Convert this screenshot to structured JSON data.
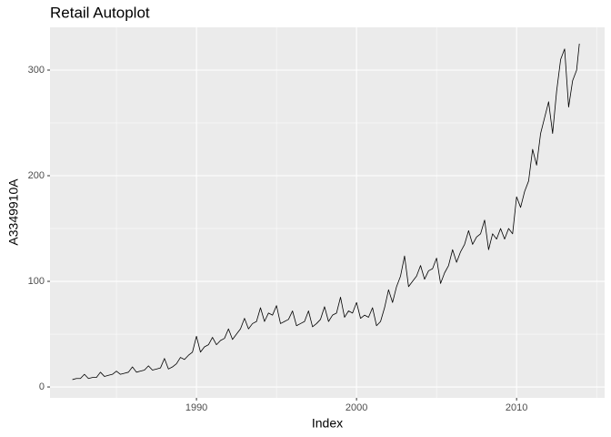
{
  "chart_data": {
    "type": "line",
    "title": "Retail Autoplot",
    "x_label": "Index",
    "y_label": "A3349910A",
    "x": [
      1982.25,
      1982.5,
      1982.75,
      1983.0,
      1983.25,
      1983.5,
      1983.75,
      1984.0,
      1984.25,
      1984.5,
      1984.75,
      1985.0,
      1985.25,
      1985.5,
      1985.75,
      1986.0,
      1986.25,
      1986.5,
      1986.75,
      1987.0,
      1987.25,
      1987.5,
      1987.75,
      1988.0,
      1988.25,
      1988.5,
      1988.75,
      1989.0,
      1989.25,
      1989.5,
      1989.75,
      1990.0,
      1990.25,
      1990.5,
      1990.75,
      1991.0,
      1991.25,
      1991.5,
      1991.75,
      1992.0,
      1992.25,
      1992.5,
      1992.75,
      1993.0,
      1993.25,
      1993.5,
      1993.75,
      1994.0,
      1994.25,
      1994.5,
      1994.75,
      1995.0,
      1995.25,
      1995.5,
      1995.75,
      1996.0,
      1996.25,
      1996.5,
      1996.75,
      1997.0,
      1997.25,
      1997.5,
      1997.75,
      1998.0,
      1998.25,
      1998.5,
      1998.75,
      1999.0,
      1999.25,
      1999.5,
      1999.75,
      2000.0,
      2000.25,
      2000.5,
      2000.75,
      2001.0,
      2001.25,
      2001.5,
      2001.75,
      2002.0,
      2002.25,
      2002.5,
      2002.75,
      2003.0,
      2003.25,
      2003.5,
      2003.75,
      2004.0,
      2004.25,
      2004.5,
      2004.75,
      2005.0,
      2005.25,
      2005.5,
      2005.75,
      2006.0,
      2006.25,
      2006.5,
      2006.75,
      2007.0,
      2007.25,
      2007.5,
      2007.75,
      2008.0,
      2008.25,
      2008.5,
      2008.75,
      2009.0,
      2009.25,
      2009.5,
      2009.75,
      2010.0,
      2010.25,
      2010.5,
      2010.75,
      2011.0,
      2011.25,
      2011.5,
      2011.75,
      2012.0,
      2012.25,
      2012.5,
      2012.75,
      2013.0,
      2013.25,
      2013.5,
      2013.75,
      2013.92
    ],
    "series": [
      {
        "name": "A3349910A",
        "color": "#000000",
        "values": [
          7,
          8,
          8,
          12,
          8,
          9,
          9,
          14,
          10,
          11,
          12,
          15,
          12,
          13,
          14,
          19,
          14,
          15,
          16,
          20,
          16,
          17,
          18,
          27,
          17,
          19,
          22,
          28,
          26,
          30,
          33,
          48,
          33,
          38,
          40,
          47,
          40,
          44,
          46,
          55,
          45,
          50,
          55,
          65,
          55,
          60,
          62,
          75,
          62,
          70,
          68,
          77,
          60,
          62,
          64,
          72,
          58,
          60,
          62,
          72,
          57,
          60,
          64,
          76,
          62,
          68,
          70,
          85,
          66,
          72,
          70,
          80,
          65,
          68,
          66,
          75,
          58,
          62,
          75,
          92,
          80,
          95,
          105,
          124,
          95,
          100,
          105,
          115,
          102,
          110,
          112,
          122,
          98,
          108,
          115,
          130,
          118,
          128,
          135,
          148,
          135,
          142,
          145,
          158,
          130,
          145,
          140,
          150,
          140,
          150,
          145,
          180,
          170,
          185,
          195,
          225,
          210,
          240,
          255,
          270,
          240,
          280,
          310,
          320,
          265,
          290,
          300,
          325
        ]
      }
    ],
    "xlim": [
      1980.85,
      2015.5
    ],
    "ylim": [
      -10.3,
      340.5
    ],
    "xticks": [
      1990,
      2000,
      2010
    ],
    "yticks": [
      0,
      100,
      200,
      300
    ],
    "grid": true
  }
}
